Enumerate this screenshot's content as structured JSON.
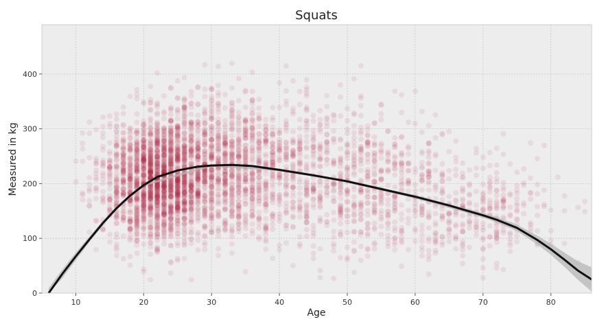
{
  "chart_data": {
    "type": "scatter",
    "title": "Squats",
    "xlabel": "Age",
    "ylabel": "Measured in kg",
    "xlim": [
      5,
      86
    ],
    "ylim": [
      0,
      490
    ],
    "xticks": [
      10,
      20,
      30,
      40,
      50,
      60,
      70,
      80
    ],
    "yticks": [
      0,
      100,
      200,
      300,
      400
    ],
    "grid": true,
    "colors": {
      "points": "#b0123a",
      "fit_line": "#111111",
      "confidence_band": "#b5b5b5",
      "plot_background": "#ededee",
      "grid": "#c9c9c9"
    },
    "scatter_clusters": [
      {
        "age_mean": 22,
        "age_sd": 4,
        "kg_mean": 205,
        "kg_sd": 55,
        "weight": 0.42
      },
      {
        "age_mean": 30,
        "age_sd": 6,
        "kg_mean": 235,
        "kg_sd": 65,
        "weight": 0.25
      },
      {
        "age_mean": 42,
        "age_sd": 8,
        "kg_mean": 220,
        "kg_sd": 65,
        "weight": 0.17
      },
      {
        "age_mean": 57,
        "age_sd": 7,
        "kg_mean": 190,
        "kg_sd": 60,
        "weight": 0.1
      },
      {
        "age_mean": 70,
        "age_sd": 6,
        "kg_mean": 150,
        "kg_sd": 45,
        "weight": 0.06
      }
    ],
    "fit_line": {
      "x": [
        6,
        8,
        10,
        12,
        14,
        16,
        18,
        20,
        22,
        25,
        28,
        30,
        33,
        36,
        40,
        45,
        50,
        55,
        60,
        65,
        70,
        72,
        75,
        78,
        80,
        82,
        84,
        86
      ],
      "y": [
        0,
        35,
        67,
        98,
        128,
        155,
        178,
        197,
        212,
        224,
        231,
        233,
        234,
        232,
        225,
        215,
        204,
        190,
        176,
        160,
        142,
        134,
        119,
        97,
        80,
        61,
        41,
        25
      ]
    },
    "confidence_band": {
      "x": [
        6,
        8,
        10,
        12,
        14,
        16,
        20,
        30,
        40,
        50,
        60,
        70,
        72,
        75,
        78,
        80,
        82,
        84,
        86
      ],
      "half_width": [
        9,
        8,
        7,
        5,
        4,
        3,
        2,
        2,
        2,
        2,
        3,
        4,
        5,
        6,
        8,
        10,
        13,
        17,
        22
      ]
    }
  }
}
